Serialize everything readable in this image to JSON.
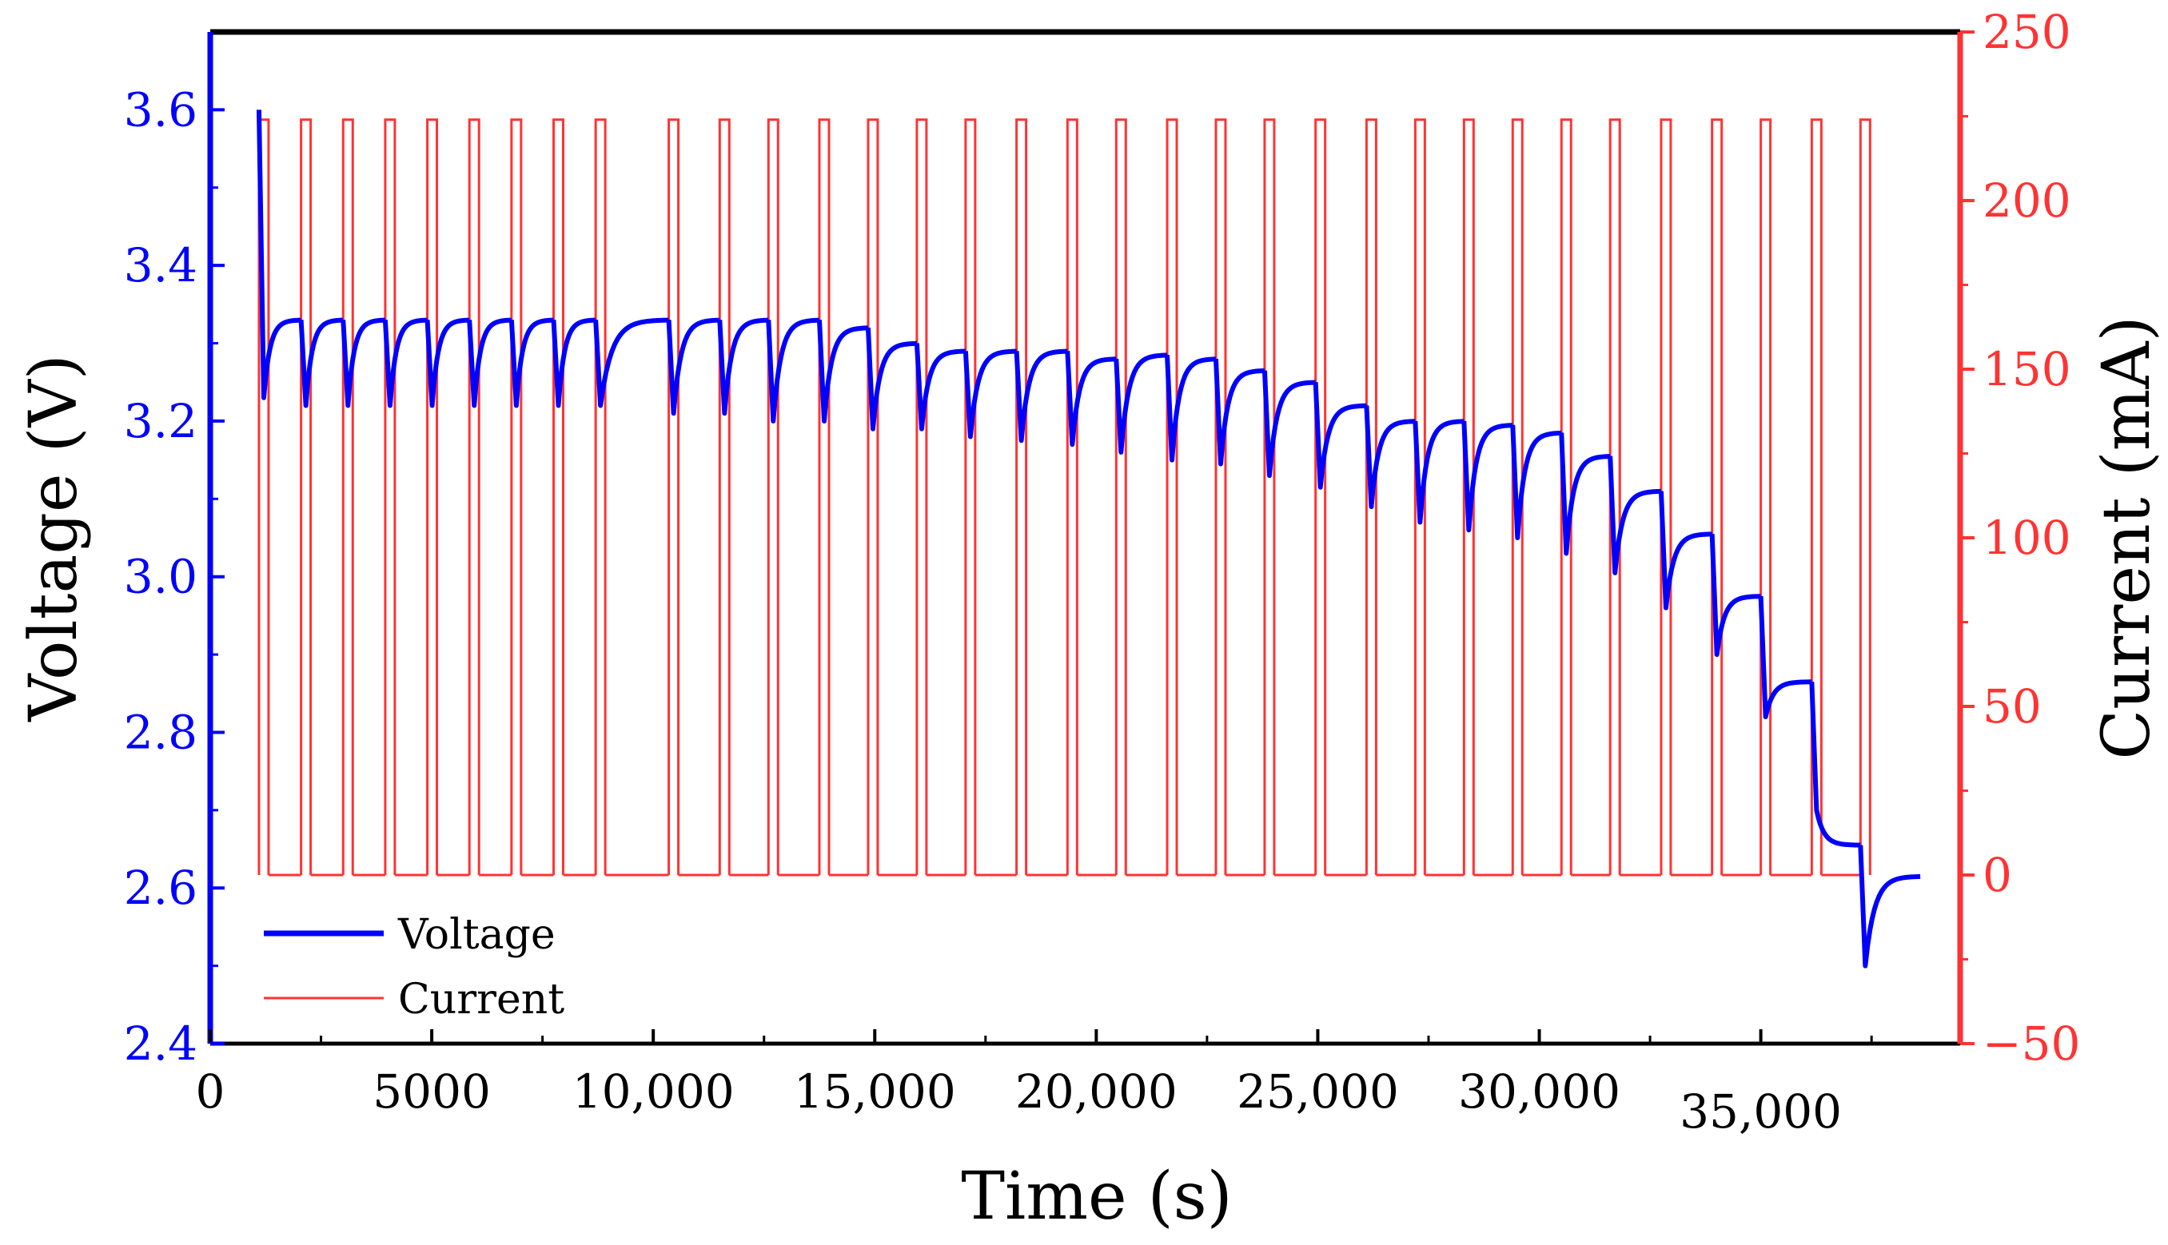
{
  "chart_data": {
    "type": "line",
    "title": "",
    "xlabel": "Time (s)",
    "ylabel_left": "Voltage (V)",
    "ylabel_right": "Current (mA)",
    "xlim": [
      0,
      39500
    ],
    "ylim_left": [
      2.4,
      3.7
    ],
    "ylim_right": [
      -50,
      250
    ],
    "x_ticks": [
      0,
      5000,
      10000,
      15000,
      20000,
      25000,
      30000,
      35000
    ],
    "x_tick_labels": [
      "0",
      "5000",
      "10,000",
      "15,000",
      "20,000",
      "25,000",
      "30,000",
      "35,000"
    ],
    "y_left_ticks": [
      2.4,
      2.6,
      2.8,
      3.0,
      3.2,
      3.4,
      3.6
    ],
    "y_left_tick_labels": [
      "2.4",
      "2.6",
      "2.8",
      "3.0",
      "3.2",
      "3.4",
      "3.6"
    ],
    "y_right_ticks": [
      -50,
      0,
      50,
      100,
      150,
      200,
      250
    ],
    "y_right_tick_labels": [
      "−50",
      "0",
      "50",
      "100",
      "150",
      "200",
      "250"
    ],
    "grid": false,
    "legend": {
      "placement": "bottom-left",
      "entries": [
        "Voltage",
        "Current"
      ]
    },
    "colors": {
      "voltage": "#0000ff",
      "current": "#ff3333",
      "axis_left": "#0000ff",
      "axis_right": "#ff3333",
      "frame": "#000000"
    },
    "series": [
      {
        "name": "Voltage",
        "axis": "left",
        "pulse_start_s": [
          1100,
          2050,
          3000,
          3950,
          4900,
          5850,
          6800,
          7750,
          8700,
          10350,
          11500,
          12600,
          13750,
          14850,
          15950,
          17050,
          18200,
          19350,
          20450,
          21600,
          22700,
          23800,
          24950,
          26100,
          27200,
          28300,
          29400,
          30500,
          31600,
          32750,
          33900,
          35000,
          36150,
          37250
        ],
        "voltage_at_pulse_start": [
          3.6,
          3.33,
          3.33,
          3.33,
          3.33,
          3.33,
          3.33,
          3.33,
          3.33,
          3.33,
          3.33,
          3.33,
          3.33,
          3.32,
          3.3,
          3.29,
          3.29,
          3.29,
          3.28,
          3.285,
          3.28,
          3.265,
          3.25,
          3.22,
          3.2,
          3.2,
          3.195,
          3.185,
          3.155,
          3.11,
          3.055,
          2.975,
          2.865,
          2.655
        ],
        "voltage_after_pulse": [
          3.23,
          3.22,
          3.22,
          3.22,
          3.22,
          3.22,
          3.22,
          3.22,
          3.22,
          3.21,
          3.21,
          3.2,
          3.2,
          3.19,
          3.19,
          3.18,
          3.175,
          3.17,
          3.16,
          3.15,
          3.145,
          3.13,
          3.115,
          3.09,
          3.07,
          3.06,
          3.05,
          3.03,
          3.005,
          2.96,
          2.9,
          2.82,
          2.7,
          2.5
        ],
        "rest_recovery_end": [
          3.33,
          3.33,
          3.33,
          3.33,
          3.33,
          3.33,
          3.33,
          3.33,
          3.33,
          3.33,
          3.33,
          3.33,
          3.32,
          3.3,
          3.29,
          3.29,
          3.29,
          3.28,
          3.285,
          3.28,
          3.265,
          3.25,
          3.22,
          3.2,
          3.2,
          3.195,
          3.185,
          3.155,
          3.11,
          3.055,
          2.975,
          2.865,
          2.655,
          2.615
        ]
      },
      {
        "name": "Current",
        "axis": "right",
        "pulse_start_s": [
          1100,
          2050,
          3000,
          3950,
          4900,
          5850,
          6800,
          7750,
          8700,
          10350,
          11500,
          12600,
          13750,
          14850,
          15950,
          17050,
          18200,
          19350,
          20450,
          21600,
          22700,
          23800,
          24950,
          26100,
          27200,
          28300,
          29400,
          30500,
          31600,
          32750,
          33900,
          35000,
          36150,
          37250
        ],
        "pulse_current_mA": 224,
        "rest_current_mA": 0
      }
    ]
  }
}
